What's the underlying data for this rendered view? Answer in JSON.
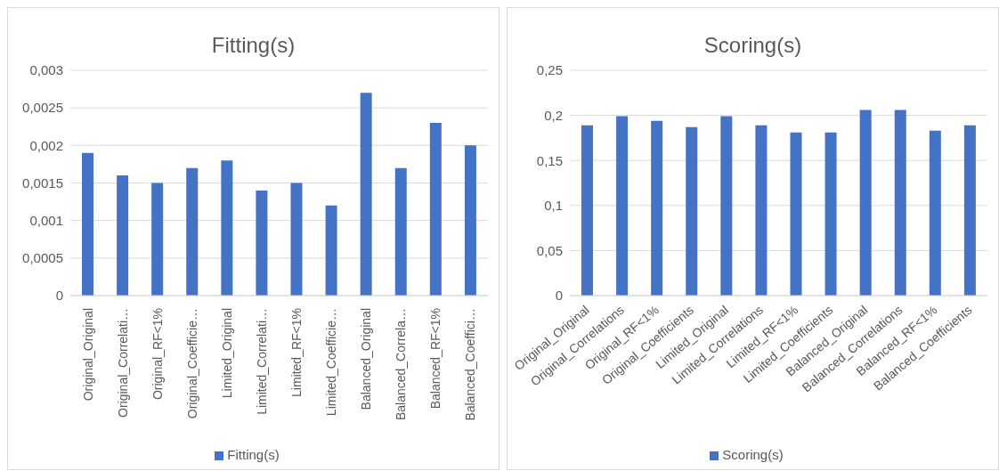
{
  "chart_data": [
    {
      "type": "bar",
      "title": "Fitting(s)",
      "categories": [
        "Original_Original",
        "Original_Correlati…",
        "Original_RF<1%",
        "Original_Coefficie…",
        "Limited_Original",
        "Limited_Correlati…",
        "Limited_RF<1%",
        "Limited_Coefficie…",
        "Balanced_Original",
        "Balanced_Correla…",
        "Balanced_RF<1%",
        "Balanced_Coeffici…"
      ],
      "series": [
        {
          "name": "Fitting(s)",
          "color": "#4472c4",
          "values": [
            0.0019,
            0.0016,
            0.0015,
            0.0017,
            0.0018,
            0.0014,
            0.0015,
            0.0012,
            0.0027,
            0.0017,
            0.0023,
            0.002
          ]
        }
      ],
      "ylim": [
        0,
        0.003
      ],
      "yticks": [
        0,
        {
          "value": 0.0005,
          "label": "0,0005"
        },
        {
          "value": 0.001,
          "label": "0,001"
        },
        {
          "value": 0.0015,
          "label": "0,0015"
        },
        {
          "value": 0.002,
          "label": "0,002"
        },
        {
          "value": 0.0025,
          "label": "0,0025"
        },
        {
          "value": 0.003,
          "label": "0,003"
        }
      ],
      "grid": "y",
      "legend": "bottom"
    },
    {
      "type": "bar",
      "title": "Scoring(s)",
      "categories": [
        "Original_Original",
        "Original_Correlations",
        "Original_RF<1%",
        "Original_Coefficients",
        "Limited_Original",
        "Limited_Correlations",
        "Limited_RF<1%",
        "Limited_Coefficients",
        "Balanced_Original",
        "Balanced_Correlations",
        "Balanced_RF<1%",
        "Balanced_Coefficients"
      ],
      "series": [
        {
          "name": "Scoring(s)",
          "color": "#4472c4",
          "values": [
            0.189,
            0.199,
            0.194,
            0.187,
            0.199,
            0.189,
            0.181,
            0.181,
            0.206,
            0.206,
            0.183,
            0.189
          ]
        }
      ],
      "ylim": [
        0,
        0.25
      ],
      "yticks": [
        0,
        {
          "value": 0.05,
          "label": "0,05"
        },
        {
          "value": 0.1,
          "label": "0,1"
        },
        {
          "value": 0.15,
          "label": "0,15"
        },
        {
          "value": 0.2,
          "label": "0,2"
        },
        {
          "value": 0.25,
          "label": "0,25"
        }
      ],
      "grid": "y",
      "legend": "bottom"
    }
  ]
}
